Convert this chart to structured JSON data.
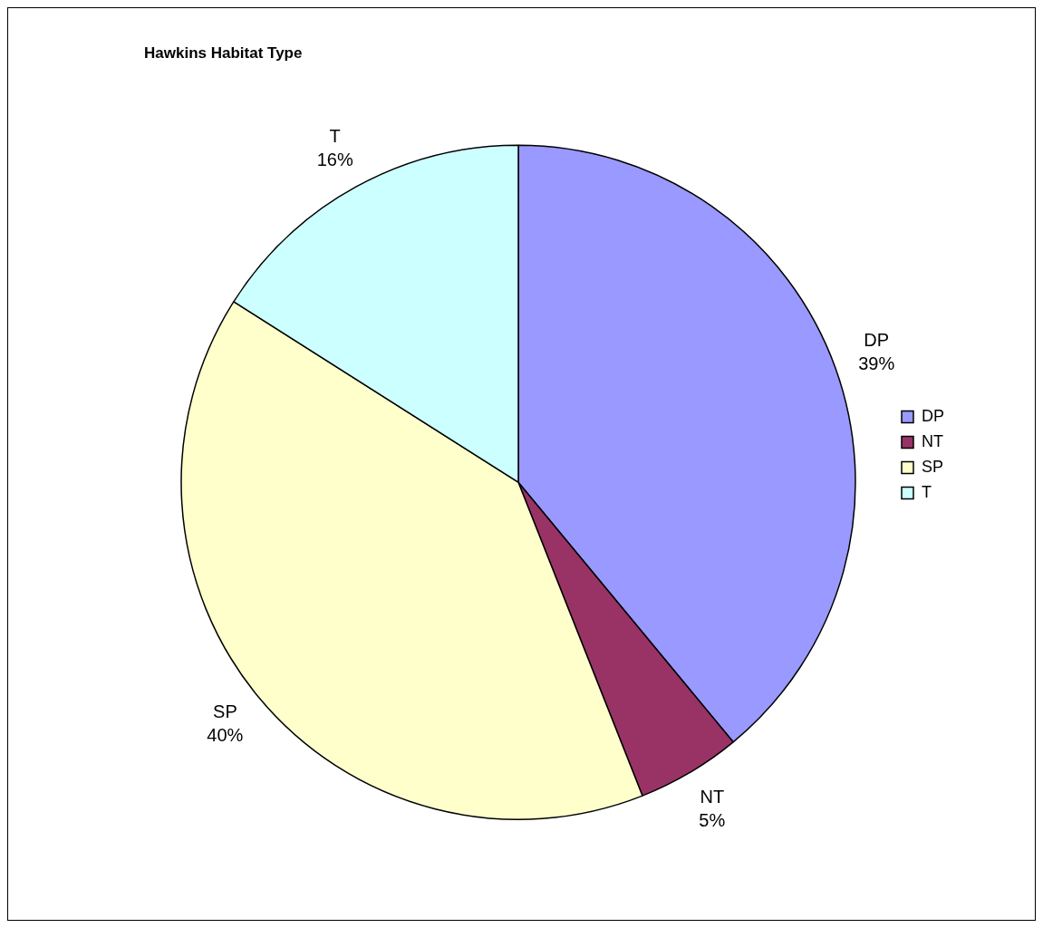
{
  "chart_data": {
    "type": "pie",
    "title": "Hawkins Habitat Type",
    "categories": [
      "DP",
      "NT",
      "SP",
      "T"
    ],
    "values": [
      39,
      5,
      40,
      16
    ],
    "value_labels": [
      "39%",
      "5%",
      "40%",
      "16%"
    ],
    "colors": [
      "#9999ff",
      "#993366",
      "#ffffcc",
      "#ccffff"
    ],
    "legend": "right"
  }
}
